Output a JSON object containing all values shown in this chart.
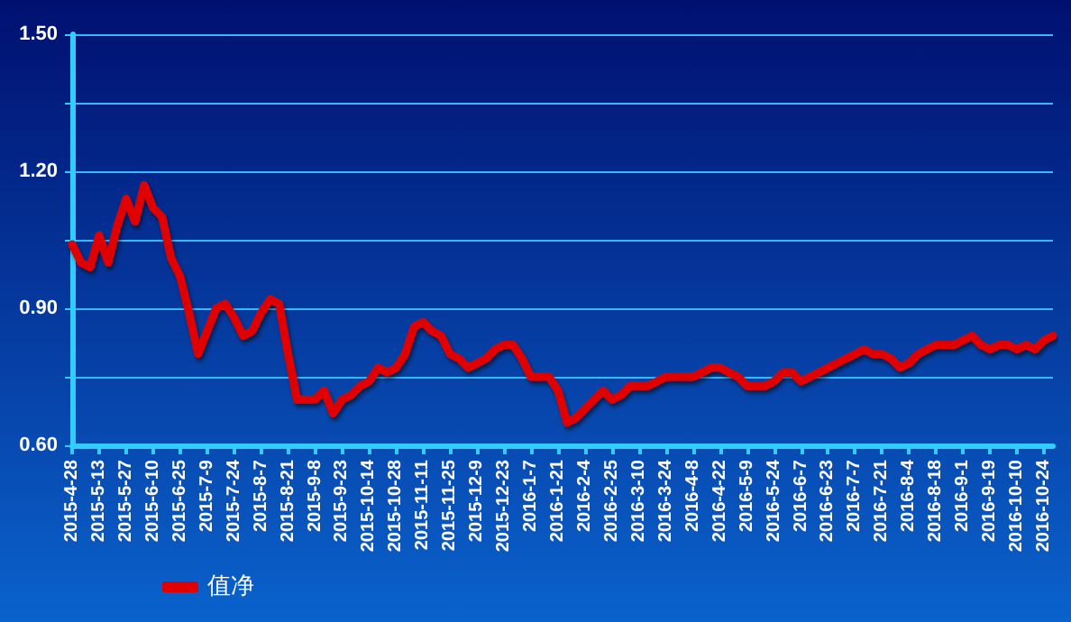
{
  "chart_data": {
    "type": "line",
    "legend": "bottom left",
    "grid": "y",
    "marker": "none",
    "line_style": "solid",
    "categories": [
      "2015-4-28",
      null,
      null,
      "2015-5-13",
      null,
      null,
      "2015-5-27",
      null,
      null,
      "2015-6-10",
      null,
      null,
      "2015-6-25",
      null,
      null,
      "2015-7-9",
      null,
      null,
      "2015-7-24",
      null,
      null,
      "2015-8-7",
      null,
      null,
      "2015-8-21",
      null,
      null,
      "2015-9-8",
      null,
      null,
      "2015-9-23",
      null,
      null,
      "2015-10-14",
      null,
      null,
      "2015-10-28",
      null,
      null,
      "2015-11-11",
      null,
      null,
      "2015-11-25",
      null,
      null,
      "2015-12-9",
      null,
      null,
      "2015-12-23",
      null,
      null,
      "2016-1-7",
      null,
      null,
      "2016-1-21",
      null,
      null,
      "2016-2-4",
      null,
      null,
      "2016-2-25",
      null,
      null,
      "2016-3-10",
      null,
      null,
      "2016-3-24",
      null,
      null,
      "2016-4-8",
      null,
      null,
      "2016-4-22",
      null,
      null,
      "2016-5-9",
      null,
      null,
      "2016-5-24",
      null,
      null,
      "2016-6-7",
      null,
      null,
      "2016-6-23",
      null,
      null,
      "2016-7-7",
      null,
      null,
      "2016-7-21",
      null,
      null,
      "2016-8-4",
      null,
      null,
      "2016-8-18",
      null,
      null,
      "2016-9-1",
      null,
      null,
      "2016-9-19",
      null,
      null,
      "2016-10-10",
      null,
      null,
      "2016-10-24",
      null
    ],
    "series": [
      {
        "name": "值净",
        "color": "#e00000",
        "values": [
          1.04,
          1.0,
          0.99,
          1.06,
          1.0,
          1.08,
          1.14,
          1.09,
          1.17,
          1.12,
          1.1,
          1.01,
          0.97,
          0.89,
          0.8,
          0.85,
          0.9,
          0.91,
          0.88,
          0.84,
          0.85,
          0.89,
          0.92,
          0.91,
          0.8,
          0.7,
          0.7,
          0.7,
          0.72,
          0.67,
          0.7,
          0.71,
          0.73,
          0.74,
          0.77,
          0.76,
          0.77,
          0.8,
          0.86,
          0.87,
          0.85,
          0.84,
          0.8,
          0.79,
          0.77,
          0.78,
          0.79,
          0.81,
          0.82,
          0.82,
          0.79,
          0.75,
          0.75,
          0.75,
          0.72,
          0.65,
          0.66,
          0.68,
          0.7,
          0.72,
          0.7,
          0.71,
          0.73,
          0.73,
          0.73,
          0.74,
          0.75,
          0.75,
          0.75,
          0.75,
          0.76,
          0.77,
          0.77,
          0.76,
          0.75,
          0.73,
          0.73,
          0.73,
          0.74,
          0.76,
          0.76,
          0.74,
          0.75,
          0.76,
          0.77,
          0.78,
          0.79,
          0.8,
          0.81,
          0.8,
          0.8,
          0.79,
          0.77,
          0.78,
          0.8,
          0.81,
          0.82,
          0.82,
          0.82,
          0.83,
          0.84,
          0.82,
          0.81,
          0.82,
          0.82,
          0.81,
          0.82,
          0.81,
          0.83,
          0.84
        ]
      }
    ],
    "ylim": [
      0.6,
      1.5
    ],
    "yticks": [
      {
        "value": 0.6,
        "label": "0.60"
      },
      {
        "value": 0.75,
        "label": null
      },
      {
        "value": 0.9,
        "label": "0.90"
      },
      {
        "value": 1.05,
        "label": null
      },
      {
        "value": 1.2,
        "label": "1.20"
      },
      {
        "value": 1.35,
        "label": null
      },
      {
        "value": 1.5,
        "label": "1.50"
      }
    ]
  }
}
